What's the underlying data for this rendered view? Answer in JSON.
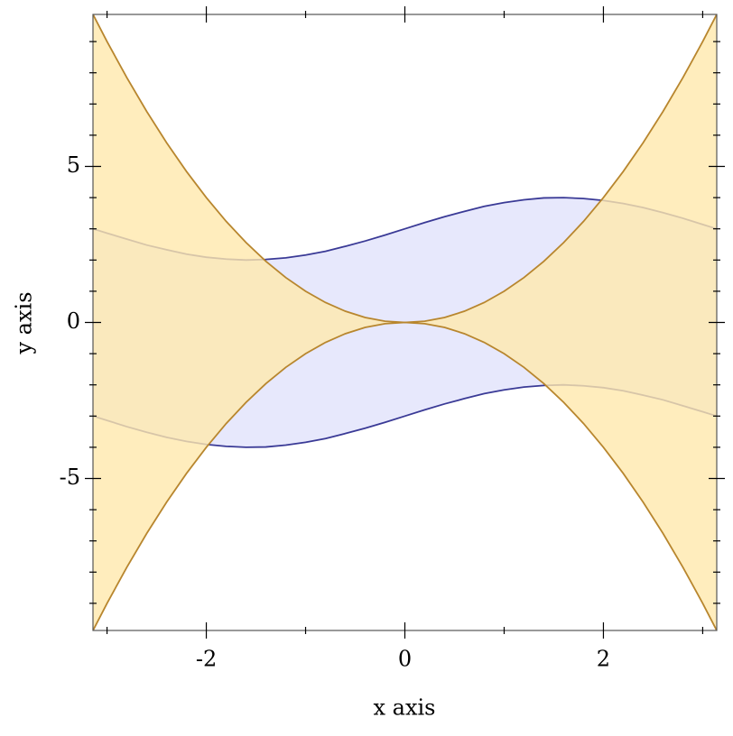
{
  "chart_data": {
    "type": "interval",
    "xlabel": "x axis",
    "ylabel": "y axis",
    "x": [
      -3.14,
      -3.0,
      -2.8,
      -2.6,
      -2.4,
      -2.2,
      -2.0,
      -1.8,
      -1.6,
      -1.4,
      -1.2,
      -1.0,
      -0.8,
      -0.6,
      -0.4,
      -0.2,
      0,
      0.2,
      0.4,
      0.6,
      0.8,
      1.0,
      1.2,
      1.4,
      1.6,
      1.8,
      2.0,
      2.2,
      2.4,
      2.6,
      2.8,
      3.0,
      3.14
    ],
    "series": [
      {
        "color": "#3a3a96",
        "fill": "#e4e6fc",
        "upper": [
          3.0,
          2.86,
          2.67,
          2.48,
          2.33,
          2.19,
          2.09,
          2.03,
          2.0,
          2.02,
          2.07,
          2.16,
          2.28,
          2.44,
          2.61,
          2.8,
          3.0,
          3.2,
          3.39,
          3.56,
          3.72,
          3.84,
          3.93,
          3.99,
          4.0,
          3.97,
          3.91,
          3.81,
          3.68,
          3.52,
          3.34,
          3.14,
          3.0
        ],
        "lower": [
          -3.0,
          -3.14,
          -3.34,
          -3.52,
          -3.68,
          -3.81,
          -3.91,
          -3.97,
          -4.0,
          -3.99,
          -3.93,
          -3.84,
          -3.72,
          -3.56,
          -3.39,
          -3.2,
          -3.0,
          -2.8,
          -2.61,
          -2.44,
          -2.28,
          -2.16,
          -2.07,
          -2.02,
          -2.0,
          -2.03,
          -2.09,
          -2.19,
          -2.33,
          -2.48,
          -2.67,
          -2.86,
          -3.0
        ]
      },
      {
        "color": "#b8862e",
        "fill": "#ffe9ad",
        "upper": [
          9.86,
          9,
          7.84,
          6.76,
          5.76,
          4.84,
          4,
          3.24,
          2.56,
          1.96,
          1.44,
          1,
          0.64,
          0.36,
          0.16,
          0.04,
          0,
          0.04,
          0.16,
          0.36,
          0.64,
          1,
          1.44,
          1.96,
          2.56,
          3.24,
          4,
          4.84,
          5.76,
          6.76,
          7.84,
          9,
          9.86
        ],
        "lower": [
          -9.86,
          -9,
          -7.84,
          -6.76,
          -5.76,
          -4.84,
          -4,
          -3.24,
          -2.56,
          -1.96,
          -1.44,
          -1,
          -0.64,
          -0.36,
          -0.16,
          -0.04,
          0,
          -0.04,
          -0.16,
          -0.36,
          -0.64,
          -1,
          -1.44,
          -1.96,
          -2.56,
          -3.24,
          -4,
          -4.84,
          -5.76,
          -6.76,
          -7.84,
          -9,
          -9.86
        ]
      }
    ],
    "xlim": [
      -3.1416,
      3.1416
    ],
    "ylim": [
      -9.87,
      9.87
    ],
    "xticks": [
      -2,
      0,
      2
    ],
    "yticks": [
      -5,
      0,
      5
    ],
    "xminorticks": [
      -3,
      -1,
      1,
      3
    ],
    "yminorticks": [
      -9,
      -8,
      -7,
      -6,
      -4,
      -3,
      -2,
      -1,
      1,
      2,
      3,
      4,
      6,
      7,
      8,
      9
    ]
  }
}
